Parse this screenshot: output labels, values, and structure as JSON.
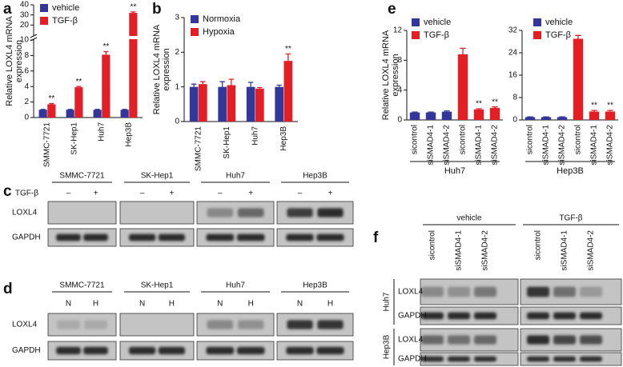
{
  "panel_labels": [
    "a",
    "b",
    "c",
    "d",
    "e",
    "f"
  ],
  "chart_data": [
    {
      "type": "bar",
      "ylabel": [
        "Relative LOXL4 mRNA",
        "expression"
      ],
      "categories": [
        "SMMC-7721",
        "SK-Hep1",
        "Huh7",
        "Hep3B"
      ],
      "ylim": [
        0,
        40
      ],
      "ybreak": 10,
      "yticks": [
        0,
        2,
        4,
        6,
        8,
        10,
        20,
        30,
        40
      ],
      "series": [
        {
          "name": "vehicle",
          "color": "#34379a",
          "values": [
            1,
            1,
            1,
            1
          ],
          "errors": [
            0.05,
            0.05,
            0.05,
            0.05
          ]
        },
        {
          "name": "TGF-β",
          "color": "#e31e24",
          "values": [
            1.7,
            3.9,
            8.1,
            32
          ],
          "errors": [
            0.1,
            0.1,
            0.4,
            1
          ],
          "significance": [
            "**",
            "**",
            "**",
            "**"
          ]
        }
      ]
    },
    {
      "type": "bar",
      "ylabel": [
        "Relative LOXL4 mRNA",
        "expression"
      ],
      "categories": [
        "SMMC-7721",
        "SK-Hep1",
        "Huh7",
        "Hep3B"
      ],
      "ylim": [
        0,
        3
      ],
      "yticks": [
        0,
        1,
        2,
        3
      ],
      "series": [
        {
          "name": "Normoxia",
          "color": "#34379a",
          "values": [
            1,
            1,
            1,
            1
          ],
          "errors": [
            0.08,
            0.15,
            0.13,
            0.05
          ]
        },
        {
          "name": "Hypoxia",
          "color": "#e31e24",
          "values": [
            1.08,
            1.05,
            0.95,
            1.75
          ],
          "errors": [
            0.07,
            0.17,
            0.03,
            0.2
          ],
          "significance": [
            null,
            null,
            null,
            "**"
          ]
        }
      ]
    },
    {
      "type": "bar",
      "ylabel": [
        "Relative LOXL4 mRNA",
        "expression"
      ],
      "xlabel": "Huh7",
      "categories": [
        "sicontrol",
        "siSMAD4-1",
        "siSMAD4-2",
        "sicontrol",
        "siSMAD4-1",
        "siSMAD4-2"
      ],
      "ylim": [
        0,
        12
      ],
      "yticks": [
        0,
        4,
        8,
        12
      ],
      "series": [
        {
          "name": "vehicle",
          "color": "#34379a",
          "values": [
            1,
            1,
            1.1,
            null,
            null,
            null
          ],
          "errors": [
            0.05,
            0.05,
            0.1,
            null,
            null,
            null
          ]
        },
        {
          "name": "TGF-β",
          "color": "#e31e24",
          "values": [
            null,
            null,
            null,
            8.8,
            1.4,
            1.6
          ],
          "errors": [
            null,
            null,
            null,
            0.8,
            0.1,
            0.15
          ],
          "significance": [
            null,
            null,
            null,
            null,
            "**",
            "**"
          ]
        }
      ]
    },
    {
      "type": "bar",
      "xlabel": "Hep3B",
      "categories": [
        "sicontrol",
        "siSMAD4-1",
        "siSMAD4-2",
        "sicontrol",
        "siSMAD4-1",
        "siSMAD4-2"
      ],
      "ylim": [
        0,
        32
      ],
      "yticks": [
        0,
        8,
        16,
        24,
        32
      ],
      "series": [
        {
          "name": "vehicle",
          "color": "#34379a",
          "values": [
            1,
            1,
            1,
            null,
            null,
            null
          ],
          "errors": [
            0.1,
            0.1,
            0.1,
            null,
            null,
            null
          ]
        },
        {
          "name": "TGF-β",
          "color": "#e31e24",
          "values": [
            null,
            null,
            null,
            29,
            3,
            3
          ],
          "errors": [
            null,
            null,
            null,
            1.2,
            0.4,
            0.4
          ],
          "significance": [
            null,
            null,
            null,
            null,
            "**",
            "**"
          ]
        }
      ]
    }
  ],
  "blots": {
    "c": {
      "cell_lines": [
        "SMMC-7721",
        "SK-Hep1",
        "Huh7",
        "Hep3B"
      ],
      "treatment": "TGF-β",
      "lanes": [
        "–",
        "+",
        "–",
        "+",
        "–",
        "+",
        "–",
        "+"
      ],
      "rows": [
        "LOXL4",
        "GAPDH"
      ]
    },
    "d": {
      "cell_lines": [
        "SMMC-7721",
        "SK-Hep1",
        "Huh7",
        "Hep3B"
      ],
      "lanes": [
        "N",
        "H",
        "N",
        "H",
        "N",
        "H",
        "N",
        "H"
      ],
      "rows": [
        "LOXL4",
        "GAPDH"
      ]
    },
    "f": {
      "groups": [
        "vehicle",
        "TGF-β"
      ],
      "lanes": [
        "sicontrol",
        "siSMAD4-1",
        "siSMAD4-2",
        "sicontrol",
        "siSMAD4-1",
        "siSMAD4-2"
      ],
      "cell_lines": [
        "Huh7",
        "Hep3B"
      ],
      "rows": [
        "LOXL4",
        "GAPDH",
        "LOXL4",
        "GAPDH"
      ]
    }
  }
}
